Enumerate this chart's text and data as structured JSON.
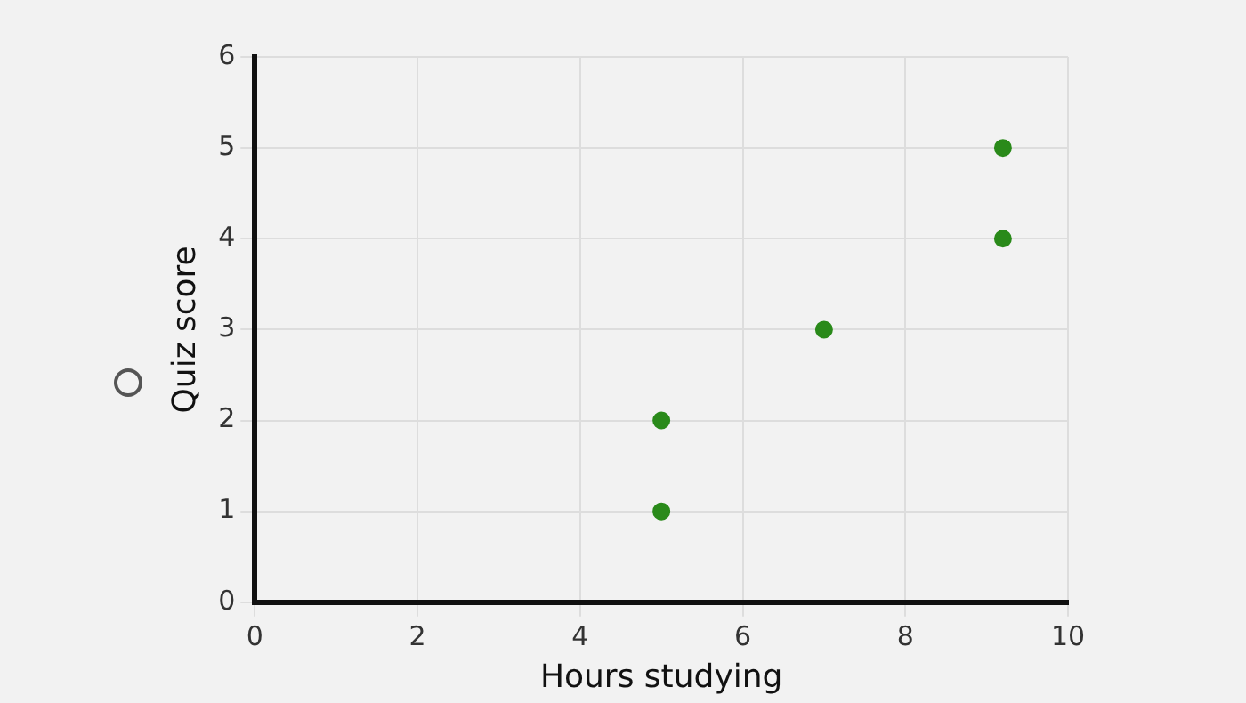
{
  "chart_data": {
    "type": "scatter",
    "xlabel": "Hours studying",
    "ylabel": "Quiz score",
    "x": [
      5,
      5,
      7,
      9.2,
      9.2
    ],
    "values": [
      1,
      2,
      3,
      4,
      5
    ],
    "color": "#2a8a1a",
    "xlim": [
      0,
      10
    ],
    "xticks": [
      0,
      2,
      4,
      6,
      8,
      10
    ],
    "ylim": [
      0,
      6
    ],
    "yticks": [
      0,
      1,
      2,
      3,
      4,
      5,
      6
    ],
    "grid": true,
    "marker": "circle",
    "legend": false
  }
}
